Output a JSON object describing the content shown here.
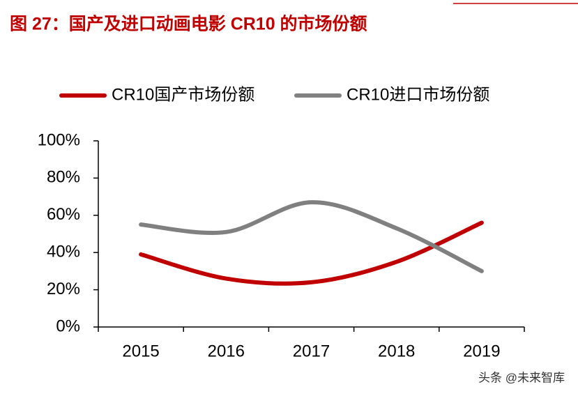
{
  "chart_data": {
    "type": "line",
    "title": "图 27：国产及进口动画电影 CR10 的市场份额",
    "categories": [
      "2015",
      "2016",
      "2017",
      "2018",
      "2019"
    ],
    "series": [
      {
        "name": "CR10国产市场份额",
        "color": "#c00000",
        "values": [
          39,
          26,
          24,
          35,
          56
        ]
      },
      {
        "name": "CR10进口市场份额",
        "color": "#808080",
        "values": [
          55,
          51,
          67,
          53,
          30
        ]
      }
    ],
    "ylim": [
      0,
      100
    ],
    "yticks": [
      {
        "value": 0,
        "label": "0%"
      },
      {
        "value": 20,
        "label": "20%"
      },
      {
        "value": 40,
        "label": "40%"
      },
      {
        "value": 60,
        "label": "60%"
      },
      {
        "value": 80,
        "label": "80%"
      },
      {
        "value": 100,
        "label": "100%"
      }
    ],
    "smooth": true,
    "grid": false,
    "legend": "top",
    "watermark": "头条 @未来智库"
  }
}
